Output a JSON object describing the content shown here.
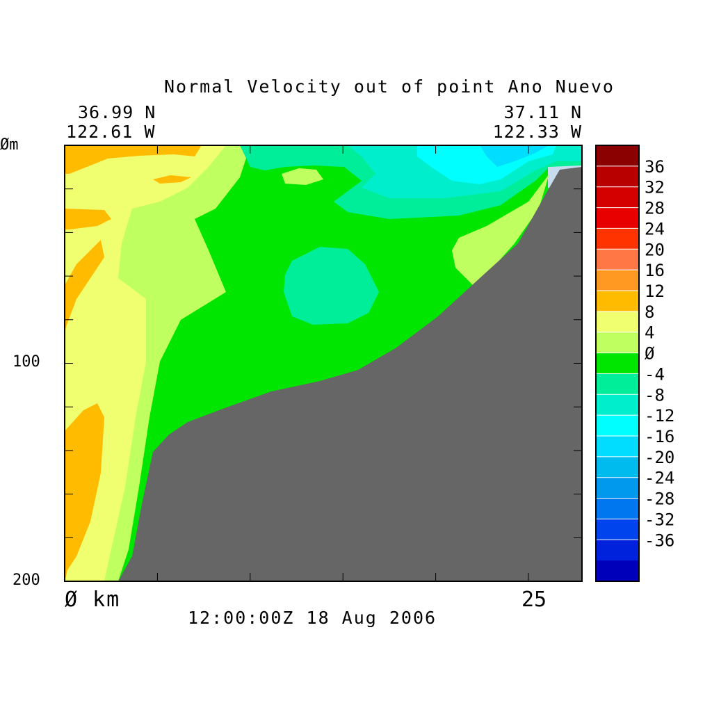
{
  "chart_data": {
    "type": "heatmap",
    "title": "Normal Velocity out of point Ano Nuevo",
    "left_corner": {
      "lat": "36.99 N",
      "lon": "122.61 W"
    },
    "right_corner": {
      "lat": "37.11 N",
      "lon": "122.33 W"
    },
    "x_tick_labels": [
      "Ø km",
      "25"
    ],
    "y_tick_labels": [
      "Øm",
      "100",
      "200"
    ],
    "ylim": [
      0,
      200
    ],
    "timestamp": "12:00:00Z  18 Aug 2006",
    "colorbar": {
      "levels": [
        -40,
        -36,
        -32,
        -28,
        -24,
        -20,
        -16,
        -12,
        -8,
        -4,
        0,
        4,
        8,
        12,
        16,
        20,
        24,
        28,
        32,
        36,
        40
      ],
      "tick_labels": [
        "36",
        "32",
        "28",
        "24",
        "20",
        "16",
        "12",
        "8",
        "4",
        "Ø",
        "-4",
        "-8",
        "-12",
        "-16",
        "-20",
        "-24",
        "-28",
        "-32",
        "-36"
      ],
      "colors": [
        "#8b0000",
        "#b80000",
        "#d40000",
        "#e80000",
        "#ff3300",
        "#ff7744",
        "#ff9922",
        "#ffbb00",
        "#f0ff70",
        "#c0ff60",
        "#00e600",
        "#00ee99",
        "#00eecc",
        "#00ffff",
        "#00ddff",
        "#00bbee",
        "#0099ee",
        "#0077ee",
        "#0044ee",
        "#0022dd",
        "#0000bb"
      ]
    },
    "regions": [
      {
        "name": "bathymetry-land",
        "color": "#666666"
      }
    ]
  }
}
